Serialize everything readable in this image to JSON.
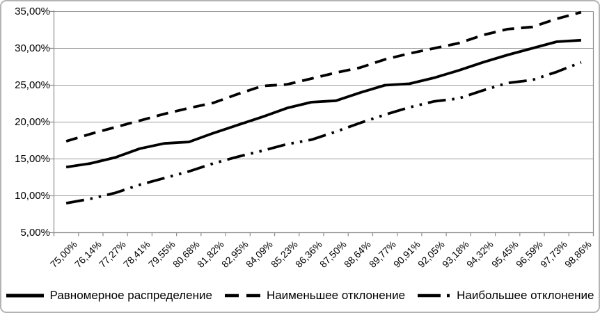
{
  "chart_data": {
    "type": "line",
    "title": "",
    "xlabel": "",
    "ylabel": "",
    "ylim": [
      5,
      35
    ],
    "grid": true,
    "legend_position": "bottom",
    "colors": {
      "line": "#000000",
      "grid": "#9a9a9a",
      "axis": "#8c8c8c",
      "border": "#b3b3b3",
      "text": "#000000"
    },
    "y_ticks": [
      {
        "value": 35,
        "label": "35,00%"
      },
      {
        "value": 30,
        "label": "30,00%"
      },
      {
        "value": 25,
        "label": "25,00%"
      },
      {
        "value": 20,
        "label": "20,00%"
      },
      {
        "value": 15,
        "label": "15,00%"
      },
      {
        "value": 10,
        "label": "10,00%"
      },
      {
        "value": 5,
        "label": "5,00%"
      }
    ],
    "x_tick_labels": [
      "75,00%",
      "76,14%",
      "77,27%",
      "78,41%",
      "79,55%",
      "80,68%",
      "81,82%",
      "82,95%",
      "84,09%",
      "85,23%",
      "86,36%",
      "87,50%",
      "88,64%",
      "89,77%",
      "90,91%",
      "92,05%",
      "93,18%",
      "94,32%",
      "95,45%",
      "96,59%",
      "97,73%",
      "98,86%"
    ],
    "series": [
      {
        "name": "Равномерное распределение",
        "slug": "uniform-distribution",
        "style": "solid",
        "values": [
          13.9,
          14.4,
          15.2,
          16.4,
          17.1,
          17.3,
          18.5,
          19.6,
          20.7,
          21.9,
          22.7,
          22.9,
          24.0,
          25.0,
          25.2,
          26.0,
          27.0,
          28.1,
          29.1,
          30.0,
          30.9,
          31.1
        ]
      },
      {
        "name": "Наименьшее отклонение",
        "slug": "min-deviation",
        "style": "dashed",
        "values": [
          17.4,
          18.4,
          19.3,
          20.2,
          21.1,
          21.9,
          22.6,
          23.8,
          24.9,
          25.1,
          25.9,
          26.7,
          27.4,
          28.5,
          29.3,
          30.0,
          30.7,
          31.8,
          32.6,
          32.9,
          34.0,
          34.9
        ]
      },
      {
        "name": "Наибольшее отклонение",
        "slug": "max-deviation",
        "style": "long-dash-dot-dot",
        "values": [
          9.0,
          9.6,
          10.4,
          11.5,
          12.4,
          13.3,
          14.4,
          15.3,
          16.1,
          17.0,
          17.6,
          18.7,
          19.9,
          21.0,
          22.0,
          22.8,
          23.2,
          24.3,
          25.3,
          25.7,
          26.8,
          28.1
        ]
      }
    ]
  }
}
